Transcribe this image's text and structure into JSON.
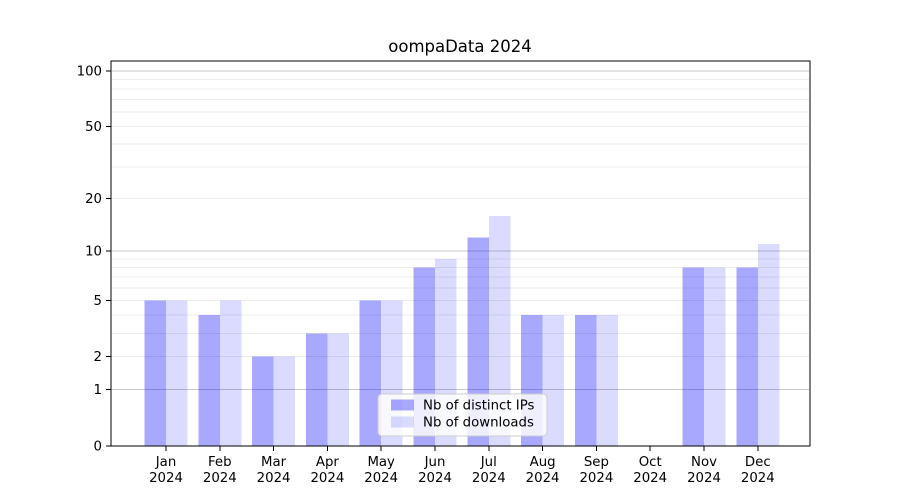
{
  "chart_data": {
    "type": "bar",
    "title": "oompaData 2024",
    "xlabel": "",
    "ylabel": "",
    "categories": [
      "Jan",
      "Feb",
      "Mar",
      "Apr",
      "May",
      "Jun",
      "Jul",
      "Aug",
      "Sep",
      "Oct",
      "Nov",
      "Dec"
    ],
    "x_tick_year": "2024",
    "series": [
      {
        "name": "Nb of distinct IPs",
        "base_color": "#0000ff",
        "alpha": 0.34,
        "apparent_color": "#a8a8fa",
        "values": [
          5,
          4,
          2,
          3,
          5,
          8,
          12,
          4,
          4,
          0,
          8,
          8
        ]
      },
      {
        "name": "Nb of downloads",
        "base_color": "#0000ff",
        "alpha": 0.14,
        "apparent_color": "#dbdbfb",
        "values": [
          5,
          5,
          2,
          3,
          5,
          9,
          16,
          4,
          4,
          0,
          8,
          11
        ]
      }
    ],
    "yscale": "log1p",
    "ytick_labels": [
      0,
      1,
      2,
      5,
      10,
      20,
      50,
      100
    ],
    "major_gridlines": [
      1,
      10,
      100
    ],
    "minor_gridlines": [
      2,
      3,
      4,
      5,
      6,
      7,
      8,
      9,
      20,
      30,
      40,
      50,
      60,
      70,
      80,
      90
    ],
    "ylim": [
      0,
      113
    ],
    "grid": true,
    "legend_position": "lower center",
    "colors": {
      "major_grid": "#c8c8c8",
      "minor_grid": "#ececec",
      "axis": "#000000",
      "text": "#000000",
      "legend_border": "#cccccc",
      "legend_bg": "rgba(255,255,255,0.8)",
      "background": "#ffffff"
    }
  }
}
